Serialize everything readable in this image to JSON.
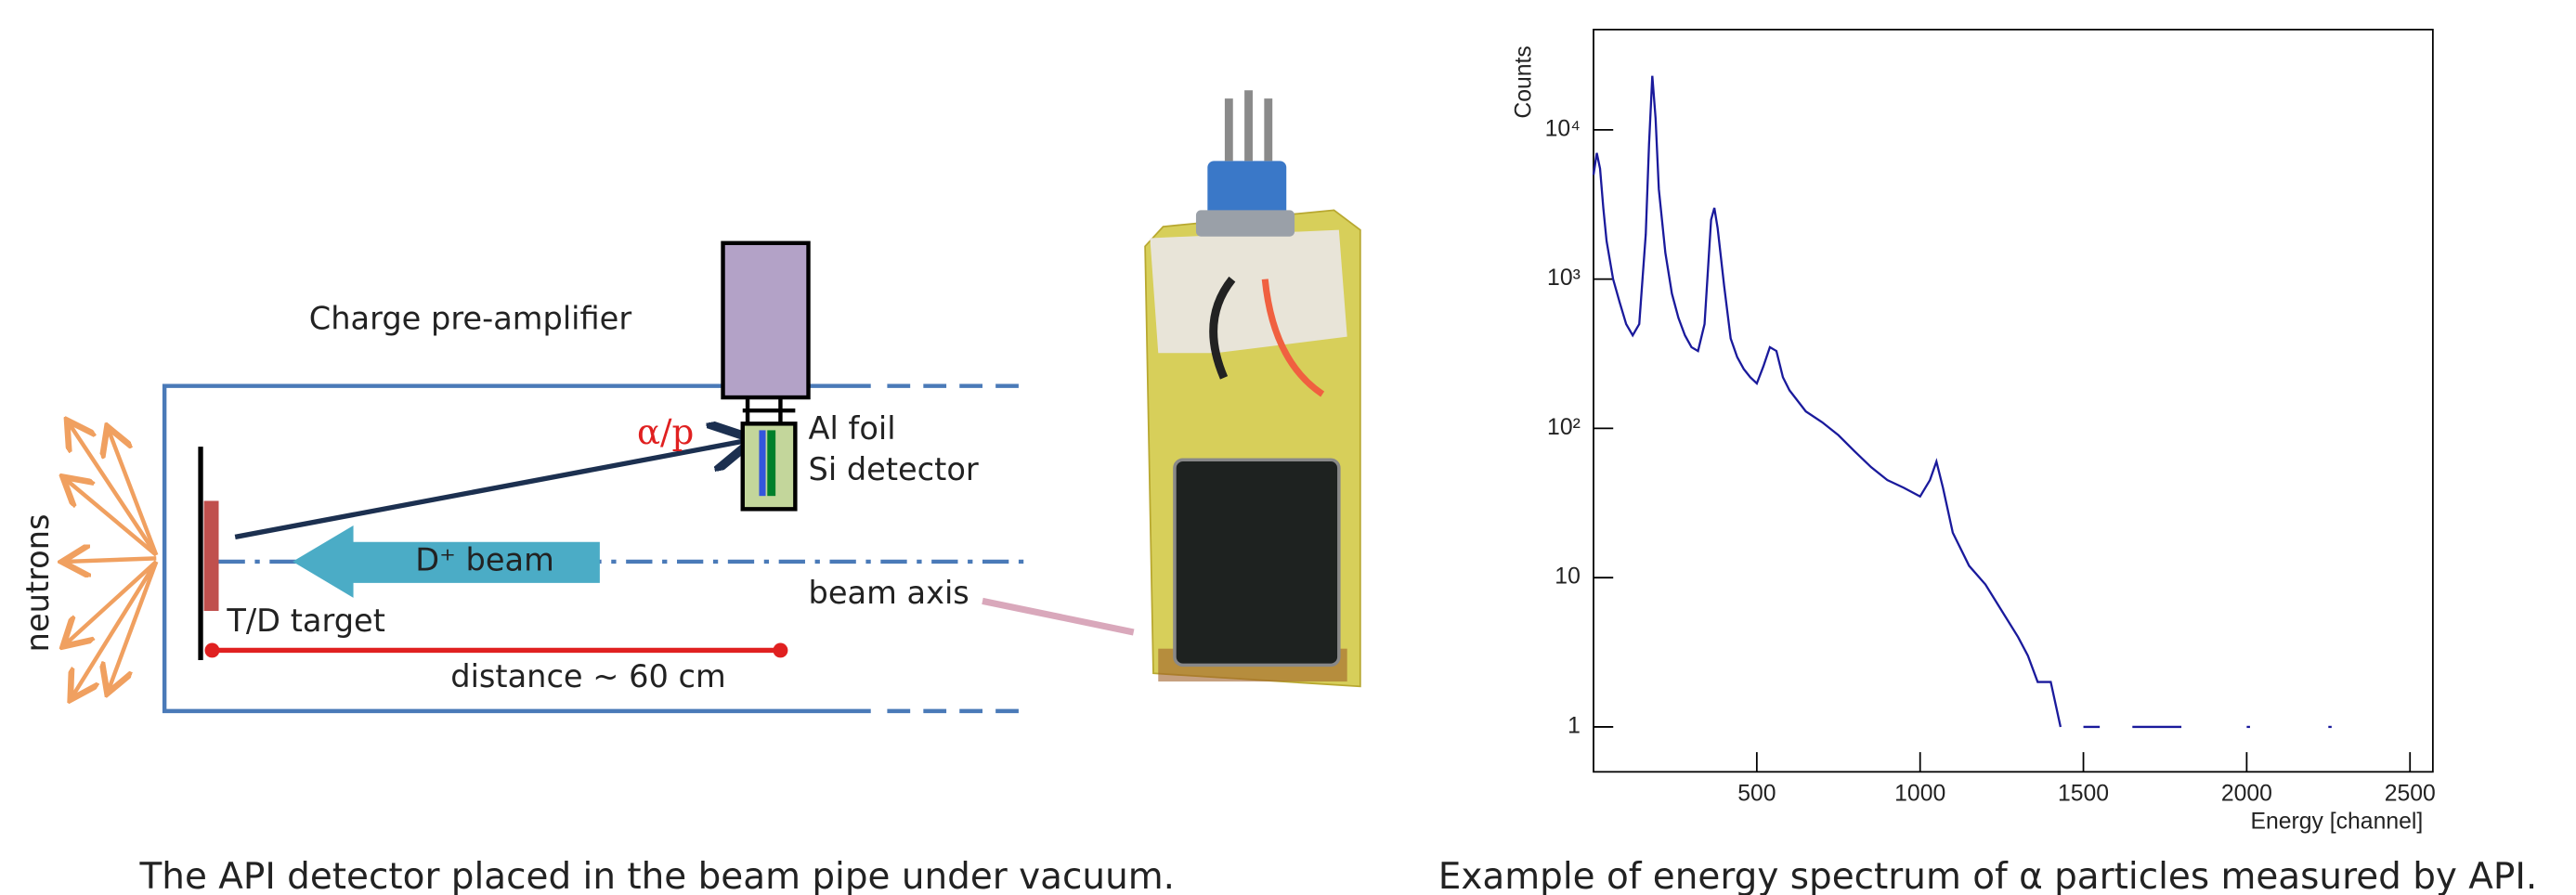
{
  "diagram": {
    "neutrons": "neutrons",
    "preamp": "Charge pre-amplifier",
    "alpha_p": "α/p",
    "al_foil": "Al foil",
    "si_detector": "Si detector",
    "beam": "D⁺ beam",
    "target": "T/D target",
    "distance": "distance ~ 60 cm",
    "beam_axis": "beam axis"
  },
  "captions": {
    "left": "The API detector placed in the beam pipe under vacuum.",
    "right": "Example of energy spectrum of α particles measured by API."
  },
  "chart_data": {
    "type": "line",
    "ylabel": "Counts",
    "xlabel": "Energy [channel]",
    "log_y": true,
    "color": "#1a1a9c",
    "x": [
      0,
      10,
      20,
      30,
      40,
      60,
      80,
      100,
      120,
      140,
      160,
      170,
      180,
      190,
      200,
      220,
      240,
      260,
      280,
      300,
      320,
      340,
      360,
      370,
      380,
      400,
      420,
      440,
      460,
      480,
      500,
      520,
      540,
      560,
      580,
      600,
      650,
      700,
      750,
      800,
      850,
      900,
      950,
      1000,
      1030,
      1050,
      1070,
      1100,
      1150,
      1200,
      1250,
      1300,
      1330,
      1360,
      1400,
      1430,
      1460,
      1500,
      1550,
      1600,
      1650,
      1700,
      1800,
      1900,
      2000,
      2100,
      2250
    ],
    "values": [
      5000,
      7000,
      5500,
      3000,
      1800,
      1000,
      700,
      500,
      420,
      500,
      2000,
      8000,
      23000,
      12000,
      4000,
      1500,
      800,
      550,
      420,
      350,
      330,
      500,
      2500,
      3000,
      2200,
      900,
      400,
      300,
      250,
      220,
      200,
      260,
      350,
      330,
      220,
      180,
      130,
      110,
      90,
      70,
      55,
      45,
      40,
      35,
      45,
      60,
      40,
      20,
      12,
      9,
      6,
      4,
      3,
      2,
      2,
      1,
      null,
      1,
      1,
      null,
      1,
      1,
      1,
      null,
      1,
      null,
      1
    ],
    "xlim": [
      0,
      2570
    ],
    "xticks": [
      500,
      1000,
      1500,
      2000,
      2500
    ],
    "ylim": [
      0.5,
      47000
    ],
    "yticks": [
      1,
      10,
      {
        "value": 100,
        "label": "10²"
      },
      {
        "value": 1000,
        "label": "10³"
      },
      {
        "value": 10000,
        "label": "10⁴"
      }
    ]
  }
}
